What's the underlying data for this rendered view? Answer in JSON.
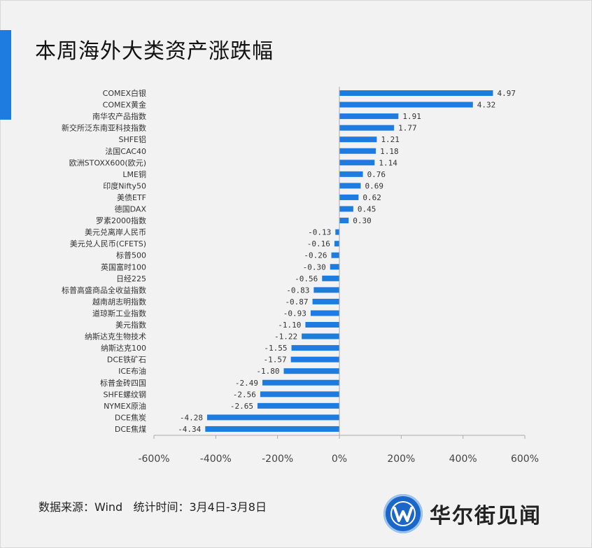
{
  "title": "本周海外大类资产涨跌幅",
  "footer": {
    "source": "数据来源：Wind",
    "period": "统计时间：3月4日-3月8日"
  },
  "brand": {
    "name": "华尔街见闻",
    "logo_icon": "wallstreetcn-logo-icon"
  },
  "colors": {
    "bar": "#1e7be0",
    "accent": "#1e7be0",
    "axis": "#aaaaaa"
  },
  "chart_data": {
    "type": "bar",
    "orientation": "horizontal",
    "grid": false,
    "legend": "none",
    "xlim": [
      -600,
      600
    ],
    "x_ticks": [
      "-600%",
      "-400%",
      "-200%",
      "0%",
      "200%",
      "400%",
      "600%"
    ],
    "categories": [
      "COMEX白银",
      "COMEX黄金",
      "南华农产品指数",
      "新交所泛东南亚科技指数",
      "SHFE铝",
      "法国CAC40",
      "欧洲STOXX600(欧元)",
      "LME铜",
      "印度Nifty50",
      "美债ETF",
      "德国DAX",
      "罗素2000指数",
      "美元兑离岸人民币",
      "美元兑人民币(CFETS)",
      "标普500",
      "英国富时100",
      "日经225",
      "标普高盛商品全收益指数",
      "越南胡志明指数",
      "道琼斯工业指数",
      "美元指数",
      "纳斯达克生物技术",
      "纳斯达克100",
      "DCE铁矿石",
      "ICE布油",
      "标普金砖四国",
      "SHFE螺纹钢",
      "NYMEX原油",
      "DCE焦炭",
      "DCE焦煤"
    ],
    "values": [
      4.97,
      4.32,
      1.91,
      1.77,
      1.21,
      1.18,
      1.14,
      0.76,
      0.69,
      0.62,
      0.45,
      0.3,
      -0.13,
      -0.16,
      -0.26,
      -0.3,
      -0.56,
      -0.83,
      -0.87,
      -0.93,
      -1.1,
      -1.22,
      -1.55,
      -1.57,
      -1.8,
      -2.49,
      -2.56,
      -2.65,
      -4.28,
      -4.34
    ],
    "value_labels": [
      "4.97",
      "4.32",
      "1.91",
      "1.77",
      "1.21",
      "1.18",
      "1.14",
      "0.76",
      "0.69",
      "0.62",
      "0.45",
      "0.30",
      "-0.13",
      "-0.16",
      "-0.26",
      "-0.30",
      "-0.56",
      "-0.83",
      "-0.87",
      "-0.93",
      "-1.10",
      "-1.22",
      "-1.55",
      "-1.57",
      "-1.80",
      "-2.49",
      "-2.56",
      "-2.65",
      "-4.28",
      "-4.34"
    ]
  }
}
